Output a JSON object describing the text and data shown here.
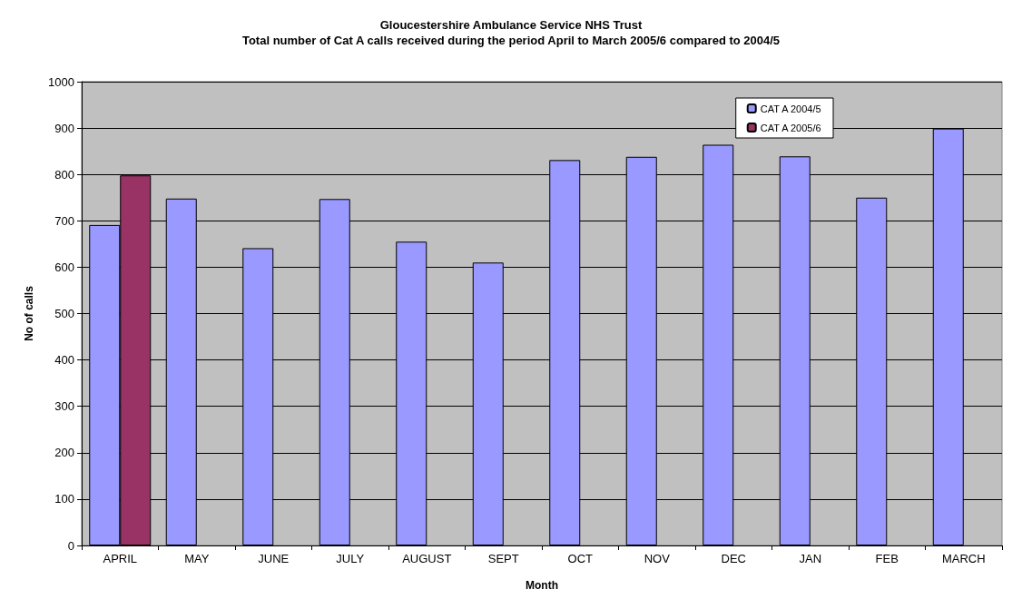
{
  "chart_data": {
    "type": "bar",
    "title": "Gloucestershire Ambulance Service NHS Trust",
    "subtitle": "Total number of Cat A calls received during the period April to March 2005/6 compared to 2004/5",
    "xlabel": "Month",
    "ylabel": "No of calls",
    "categories": [
      "APRIL",
      "MAY",
      "JUNE",
      "JULY",
      "AUGUST",
      "SEPT",
      "OCT",
      "NOV",
      "DEC",
      "JAN",
      "FEB",
      "MARCH"
    ],
    "series": [
      {
        "name": "CAT A 2004/5",
        "color": "#9999ff",
        "values": [
          691,
          748,
          641,
          747,
          655,
          610,
          831,
          838,
          864,
          839,
          750,
          899
        ]
      },
      {
        "name": "CAT A 2005/6",
        "color": "#993366",
        "values": [
          798,
          null,
          null,
          null,
          null,
          null,
          null,
          null,
          null,
          null,
          null,
          null
        ]
      }
    ],
    "ylim": [
      0,
      1000
    ],
    "yticks": [
      0,
      100,
      200,
      300,
      400,
      500,
      600,
      700,
      800,
      900,
      1000
    ],
    "grid": "y",
    "legend": "top right"
  }
}
